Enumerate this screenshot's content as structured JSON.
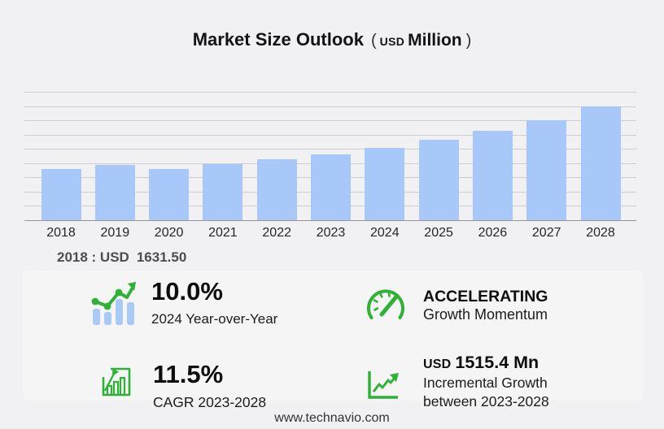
{
  "title": {
    "main": "Market Size Outlook",
    "open": "(",
    "currency": "USD",
    "unit": "Million",
    "close": ")"
  },
  "chart_data": {
    "type": "bar",
    "title": "Market Size Outlook (USD Million)",
    "categories": [
      "2018",
      "2019",
      "2020",
      "2021",
      "2022",
      "2023",
      "2024",
      "2025",
      "2026",
      "2027",
      "2028"
    ],
    "values": [
      1631.5,
      1760,
      1628,
      1763,
      1922,
      2094.5,
      2303.9,
      2554,
      2849,
      3180,
      3609.9
    ],
    "xlabel": "",
    "ylabel": "USD Million",
    "ylim": [
      0,
      4080
    ],
    "grid": true,
    "gridline_count": 10,
    "legend": false,
    "bar_color": "#a7c8f8",
    "annotation": "2018 : USD 1631.50"
  },
  "annotation": {
    "label": "2018 : USD",
    "value": "1631.50"
  },
  "stats": [
    {
      "icon": "bar-chart-trend-icon",
      "value": "10.0%",
      "caption": "2024 Year-over-Year"
    },
    {
      "icon": "gauge-icon",
      "value": "ACCELERATING",
      "caption": "Growth Momentum"
    },
    {
      "icon": "chart-growth-frame-icon",
      "value": "11.5%",
      "caption": "CAGR 2023-2028"
    },
    {
      "icon": "line-graph-axes-icon",
      "value_prefix": "USD",
      "value": "1515.4 Mn",
      "caption": "Incremental Growth",
      "caption2": "between 2023-2028"
    }
  ],
  "footer": {
    "url": "www.technavio.com"
  },
  "colors": {
    "background": "#f1f1f3",
    "panel": "#f5f5f6",
    "bar": "#a7c8f8",
    "green": "#2eb135",
    "gridline": "#cdcdcf",
    "baseline": "#96969a"
  }
}
